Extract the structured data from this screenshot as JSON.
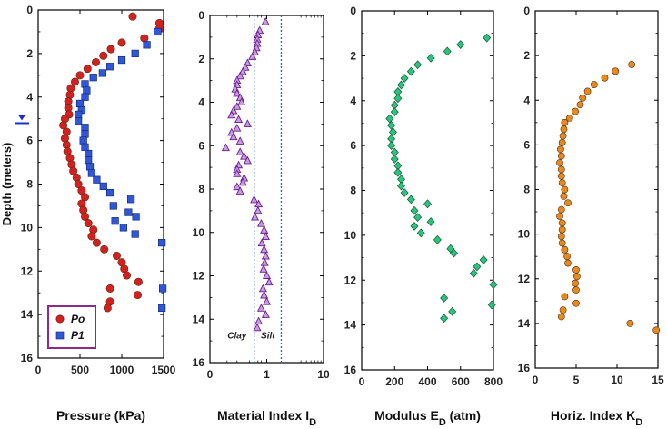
{
  "chart_data": [
    {
      "type": "scatter",
      "xlabel": "Pressure (kPa)",
      "ylabel": "Depth (meters)",
      "xlim": [
        0,
        1500
      ],
      "xticks": [
        0,
        500,
        1000,
        1500
      ],
      "ylim": [
        0,
        16
      ],
      "yticks": [
        0,
        2,
        4,
        6,
        8,
        10,
        12,
        14,
        16
      ],
      "y_inverted": true,
      "water_table_depth": 5.2,
      "legend": "bottom-left",
      "series": [
        {
          "name": "Po",
          "marker": "circle",
          "color": "#d42020",
          "points": [
            [
              1130,
              0.3
            ],
            [
              1450,
              0.6
            ],
            [
              1450,
              0.85
            ],
            [
              1270,
              1.3
            ],
            [
              1000,
              1.5
            ],
            [
              870,
              1.8
            ],
            [
              780,
              2.1
            ],
            [
              690,
              2.4
            ],
            [
              590,
              2.7
            ],
            [
              500,
              3.0
            ],
            [
              440,
              3.3
            ],
            [
              390,
              3.6
            ],
            [
              380,
              3.9
            ],
            [
              360,
              4.2
            ],
            [
              360,
              4.5
            ],
            [
              370,
              4.8
            ],
            [
              320,
              5.0
            ],
            [
              300,
              5.3
            ],
            [
              340,
              5.6
            ],
            [
              320,
              5.9
            ],
            [
              340,
              6.2
            ],
            [
              350,
              6.5
            ],
            [
              380,
              6.8
            ],
            [
              400,
              7.1
            ],
            [
              420,
              7.4
            ],
            [
              460,
              7.7
            ],
            [
              480,
              8.0
            ],
            [
              520,
              8.3
            ],
            [
              560,
              8.6
            ],
            [
              520,
              8.9
            ],
            [
              540,
              9.2
            ],
            [
              560,
              9.5
            ],
            [
              600,
              9.8
            ],
            [
              660,
              10.1
            ],
            [
              640,
              10.4
            ],
            [
              700,
              10.7
            ],
            [
              790,
              11.0
            ],
            [
              940,
              11.3
            ],
            [
              1000,
              11.6
            ],
            [
              1030,
              11.9
            ],
            [
              1060,
              12.2
            ],
            [
              1200,
              12.5
            ],
            [
              860,
              12.8
            ],
            [
              1190,
              13.1
            ],
            [
              860,
              13.4
            ],
            [
              830,
              13.7
            ]
          ]
        },
        {
          "name": "P1",
          "marker": "square",
          "color": "#2f57d8",
          "points": [
            [
              1430,
              1.0
            ],
            [
              1300,
              1.6
            ],
            [
              1160,
              2.0
            ],
            [
              1000,
              2.3
            ],
            [
              860,
              2.6
            ],
            [
              770,
              2.9
            ],
            [
              660,
              3.1
            ],
            [
              560,
              3.4
            ],
            [
              580,
              3.7
            ],
            [
              560,
              4.0
            ],
            [
              500,
              4.3
            ],
            [
              520,
              4.6
            ],
            [
              480,
              4.8
            ],
            [
              480,
              5.1
            ],
            [
              560,
              5.4
            ],
            [
              560,
              5.7
            ],
            [
              540,
              6.0
            ],
            [
              560,
              6.3
            ],
            [
              600,
              6.6
            ],
            [
              600,
              6.9
            ],
            [
              620,
              7.2
            ],
            [
              640,
              7.5
            ],
            [
              700,
              7.8
            ],
            [
              780,
              8.1
            ],
            [
              860,
              8.4
            ],
            [
              1110,
              8.7
            ],
            [
              900,
              9.0
            ],
            [
              1080,
              9.3
            ],
            [
              1170,
              9.5
            ],
            [
              920,
              9.7
            ],
            [
              1020,
              10.0
            ],
            [
              1160,
              10.3
            ],
            [
              1480,
              10.7
            ],
            [
              1490,
              12.8
            ],
            [
              1480,
              13.7
            ]
          ]
        }
      ]
    },
    {
      "type": "scatter",
      "xlabel": "Material Index I",
      "xlabel_subscript": "D",
      "x_scale": "log",
      "xlim": [
        0.1,
        10
      ],
      "xticks": [
        0.1,
        1,
        10
      ],
      "xtick_labels": [
        "0",
        "1",
        "10"
      ],
      "ylim": [
        0,
        16
      ],
      "yticks": [
        0,
        2,
        4,
        6,
        8,
        10,
        12,
        14,
        16
      ],
      "y_inverted": true,
      "boundaries": [
        0.6,
        1.8
      ],
      "annotations": [
        "Clay",
        "Silt"
      ],
      "series": [
        {
          "marker": "triangle",
          "color": "#9b45c2",
          "points": [
            [
              0.95,
              0.3
            ],
            [
              0.75,
              0.7
            ],
            [
              0.7,
              0.9
            ],
            [
              0.68,
              1.1
            ],
            [
              0.68,
              1.3
            ],
            [
              0.66,
              1.5
            ],
            [
              0.62,
              1.7
            ],
            [
              0.56,
              1.9
            ],
            [
              0.46,
              2.2
            ],
            [
              0.42,
              2.4
            ],
            [
              0.38,
              2.6
            ],
            [
              0.34,
              2.8
            ],
            [
              0.3,
              3.0
            ],
            [
              0.3,
              3.2
            ],
            [
              0.28,
              3.4
            ],
            [
              0.3,
              3.6
            ],
            [
              0.34,
              3.8
            ],
            [
              0.36,
              4.0
            ],
            [
              0.3,
              4.2
            ],
            [
              0.26,
              4.4
            ],
            [
              0.24,
              4.6
            ],
            [
              0.32,
              4.8
            ],
            [
              0.46,
              5.0
            ],
            [
              0.3,
              5.2
            ],
            [
              0.24,
              5.4
            ],
            [
              0.26,
              5.6
            ],
            [
              0.34,
              5.8
            ],
            [
              0.19,
              6.1
            ],
            [
              0.34,
              6.3
            ],
            [
              0.4,
              6.5
            ],
            [
              0.46,
              6.7
            ],
            [
              0.32,
              6.9
            ],
            [
              0.3,
              7.1
            ],
            [
              0.3,
              7.3
            ],
            [
              0.4,
              7.5
            ],
            [
              0.38,
              7.7
            ],
            [
              0.3,
              7.9
            ],
            [
              0.34,
              8.1
            ],
            [
              0.6,
              8.5
            ],
            [
              0.72,
              8.7
            ],
            [
              0.7,
              9.0
            ],
            [
              0.62,
              9.3
            ],
            [
              0.8,
              9.6
            ],
            [
              0.9,
              9.9
            ],
            [
              0.96,
              10.2
            ],
            [
              0.82,
              10.5
            ],
            [
              0.9,
              10.8
            ],
            [
              0.96,
              11.1
            ],
            [
              0.92,
              11.4
            ],
            [
              0.88,
              11.7
            ],
            [
              1.0,
              12.0
            ],
            [
              1.1,
              12.3
            ],
            [
              0.86,
              12.6
            ],
            [
              0.9,
              12.9
            ],
            [
              1.0,
              13.2
            ],
            [
              0.8,
              13.5
            ],
            [
              0.96,
              13.8
            ],
            [
              0.72,
              14.1
            ],
            [
              0.68,
              14.4
            ]
          ]
        }
      ]
    },
    {
      "type": "scatter",
      "xlabel": "Modulus E",
      "xlabel_subscript": "D",
      "xlabel_suffix": " (atm)",
      "xlim": [
        0,
        800
      ],
      "xticks": [
        0,
        200,
        400,
        600,
        800
      ],
      "ylim": [
        0,
        16
      ],
      "yticks": [
        0,
        2,
        4,
        6,
        8,
        10,
        12,
        14,
        16
      ],
      "y_inverted": true,
      "series": [
        {
          "marker": "diamond",
          "color": "#2fc27c",
          "points": [
            [
              760,
              1.2
            ],
            [
              600,
              1.5
            ],
            [
              520,
              1.8
            ],
            [
              420,
              2.1
            ],
            [
              340,
              2.4
            ],
            [
              300,
              2.7
            ],
            [
              260,
              3.0
            ],
            [
              240,
              3.3
            ],
            [
              220,
              3.6
            ],
            [
              220,
              3.9
            ],
            [
              200,
              4.2
            ],
            [
              200,
              4.5
            ],
            [
              170,
              4.8
            ],
            [
              180,
              5.1
            ],
            [
              190,
              5.4
            ],
            [
              180,
              5.7
            ],
            [
              180,
              6.0
            ],
            [
              200,
              6.3
            ],
            [
              200,
              6.6
            ],
            [
              220,
              6.9
            ],
            [
              220,
              7.2
            ],
            [
              240,
              7.5
            ],
            [
              240,
              7.8
            ],
            [
              260,
              8.1
            ],
            [
              300,
              8.4
            ],
            [
              400,
              8.6
            ],
            [
              320,
              8.9
            ],
            [
              340,
              9.2
            ],
            [
              420,
              9.4
            ],
            [
              320,
              9.6
            ],
            [
              360,
              9.9
            ],
            [
              460,
              10.2
            ],
            [
              540,
              10.6
            ],
            [
              560,
              10.8
            ],
            [
              740,
              11.1
            ],
            [
              700,
              11.4
            ],
            [
              680,
              11.7
            ],
            [
              800,
              12.2
            ],
            [
              500,
              12.8
            ],
            [
              790,
              13.1
            ],
            [
              550,
              13.4
            ],
            [
              500,
              13.7
            ]
          ]
        }
      ]
    },
    {
      "type": "scatter",
      "xlabel": "Horiz. Index K",
      "xlabel_subscript": "D",
      "xlim": [
        0,
        15
      ],
      "xticks": [
        0,
        5,
        10,
        15
      ],
      "ylim": [
        0,
        16
      ],
      "yticks": [
        0,
        2,
        4,
        6,
        8,
        10,
        12,
        14,
        16
      ],
      "y_inverted": true,
      "series": [
        {
          "marker": "circle",
          "color": "#e58a1f",
          "points": [
            [
              11.8,
              2.4
            ],
            [
              9.8,
              2.7
            ],
            [
              8.5,
              3.0
            ],
            [
              7.2,
              3.3
            ],
            [
              6.4,
              3.6
            ],
            [
              5.8,
              3.9
            ],
            [
              5.5,
              4.2
            ],
            [
              4.9,
              4.5
            ],
            [
              4.2,
              4.8
            ],
            [
              3.6,
              5.0
            ],
            [
              3.5,
              5.3
            ],
            [
              3.4,
              5.6
            ],
            [
              3.3,
              5.9
            ],
            [
              3.1,
              6.2
            ],
            [
              3.2,
              6.5
            ],
            [
              3.0,
              6.8
            ],
            [
              3.2,
              7.1
            ],
            [
              3.2,
              7.4
            ],
            [
              3.3,
              7.7
            ],
            [
              3.6,
              8.0
            ],
            [
              3.5,
              8.3
            ],
            [
              4.0,
              8.6
            ],
            [
              3.2,
              8.9
            ],
            [
              3.0,
              9.2
            ],
            [
              3.3,
              9.5
            ],
            [
              3.3,
              9.8
            ],
            [
              3.2,
              10.1
            ],
            [
              3.3,
              10.4
            ],
            [
              3.6,
              10.7
            ],
            [
              3.9,
              11.0
            ],
            [
              4.0,
              11.3
            ],
            [
              5.0,
              11.6
            ],
            [
              5.1,
              11.9
            ],
            [
              4.9,
              12.2
            ],
            [
              5.0,
              12.5
            ],
            [
              3.6,
              12.8
            ],
            [
              5.0,
              13.1
            ],
            [
              3.4,
              13.4
            ],
            [
              3.2,
              13.7
            ],
            [
              11.6,
              14.0
            ],
            [
              14.8,
              14.3
            ]
          ]
        }
      ]
    }
  ],
  "legend": {
    "po": "Po",
    "p1": "P1"
  }
}
